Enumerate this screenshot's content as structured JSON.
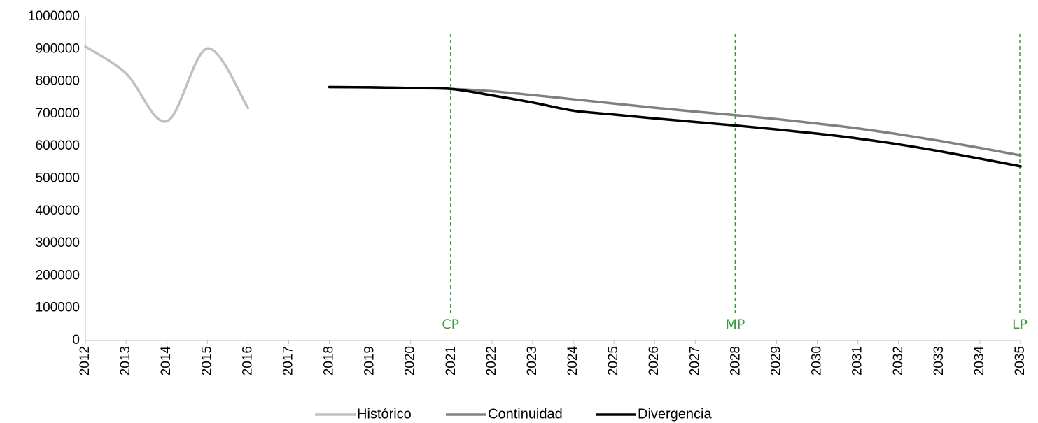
{
  "chart_data": {
    "type": "line",
    "title": "",
    "xlabel": "",
    "ylabel": "",
    "x": [
      2012,
      2013,
      2014,
      2015,
      2016,
      2017,
      2018,
      2019,
      2020,
      2021,
      2022,
      2023,
      2024,
      2025,
      2026,
      2027,
      2028,
      2029,
      2030,
      2031,
      2032,
      2033,
      2034,
      2035
    ],
    "x_labels": [
      "2012",
      "2013",
      "2014",
      "2015",
      "2016",
      "2017",
      "2018",
      "2019",
      "2020",
      "2021",
      "2022",
      "2023",
      "2024",
      "2025",
      "2026",
      "2027",
      "2028",
      "2029",
      "2030",
      "2031",
      "2032",
      "2033",
      "2034",
      "2035"
    ],
    "ylim": [
      0,
      1000000
    ],
    "y_ticks": [
      0,
      100000,
      200000,
      300000,
      400000,
      500000,
      600000,
      700000,
      800000,
      900000,
      1000000
    ],
    "y_tick_labels": [
      "0",
      "100000",
      "200000",
      "300000",
      "400000",
      "500000",
      "600000",
      "700000",
      "800000",
      "900000",
      "1000000"
    ],
    "grid": false,
    "legend_position": "bottom",
    "series": [
      {
        "name": "Histórico",
        "color": "#c0c0c0",
        "values": [
          908000,
          825000,
          677000,
          902000,
          718000,
          null,
          null,
          null,
          null,
          null,
          null,
          null,
          null,
          null,
          null,
          null,
          null,
          null,
          null,
          null,
          null,
          null,
          null,
          null
        ]
      },
      {
        "name": "Continuidad",
        "color": "#808080",
        "values": [
          null,
          null,
          null,
          null,
          null,
          null,
          783000,
          782000,
          780000,
          777000,
          770000,
          758000,
          745000,
          732000,
          719000,
          707000,
          696000,
          684000,
          670000,
          655000,
          637000,
          617000,
          595000,
          572000
        ]
      },
      {
        "name": "Divergencia",
        "color": "#000000",
        "values": [
          null,
          null,
          null,
          null,
          null,
          null,
          783000,
          782000,
          780000,
          777000,
          757000,
          735000,
          710000,
          698000,
          686000,
          675000,
          664000,
          652000,
          639000,
          624000,
          606000,
          585000,
          562000,
          538000
        ]
      }
    ],
    "markers": [
      {
        "label": "CP",
        "x": 2021,
        "color": "#3a9a3a"
      },
      {
        "label": "MP",
        "x": 2028,
        "color": "#3a9a3a"
      },
      {
        "label": "LP",
        "x": 2035,
        "color": "#3a9a3a"
      }
    ]
  }
}
